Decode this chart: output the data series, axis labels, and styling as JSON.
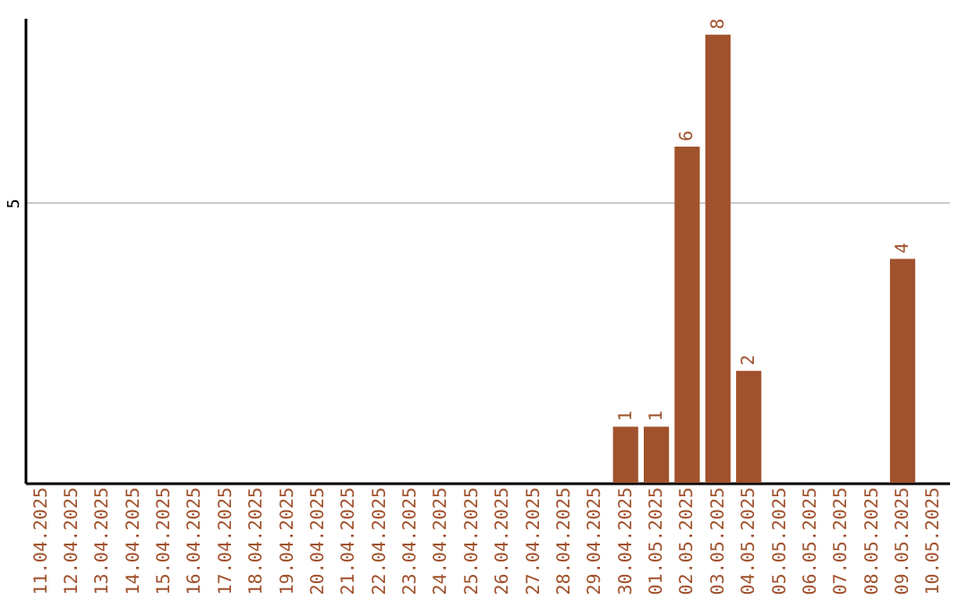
{
  "chart_data": {
    "type": "bar",
    "categories": [
      "11.04.2025",
      "12.04.2025",
      "13.04.2025",
      "14.04.2025",
      "15.04.2025",
      "16.04.2025",
      "17.04.2025",
      "18.04.2025",
      "19.04.2025",
      "20.04.2025",
      "21.04.2025",
      "22.04.2025",
      "23.04.2025",
      "24.04.2025",
      "25.04.2025",
      "26.04.2025",
      "27.04.2025",
      "28.04.2025",
      "29.04.2025",
      "30.04.2025",
      "01.05.2025",
      "02.05.2025",
      "03.05.2025",
      "04.05.2025",
      "05.05.2025",
      "06.05.2025",
      "07.05.2025",
      "08.05.2025",
      "09.05.2025",
      "10.05.2025"
    ],
    "values": [
      null,
      null,
      null,
      null,
      null,
      null,
      null,
      null,
      null,
      null,
      null,
      null,
      null,
      null,
      null,
      null,
      null,
      null,
      null,
      1,
      1,
      6,
      8,
      2,
      null,
      null,
      null,
      null,
      4,
      null
    ],
    "value_labels": [
      null,
      null,
      null,
      null,
      null,
      null,
      null,
      null,
      null,
      null,
      null,
      null,
      null,
      null,
      null,
      null,
      null,
      null,
      null,
      "1",
      "1",
      "6",
      "8",
      "2",
      null,
      null,
      null,
      null,
      "4",
      null
    ],
    "color": "#a0522d",
    "ylim": [
      0,
      8.3
    ],
    "yticks": [
      5
    ],
    "grid": "y"
  }
}
